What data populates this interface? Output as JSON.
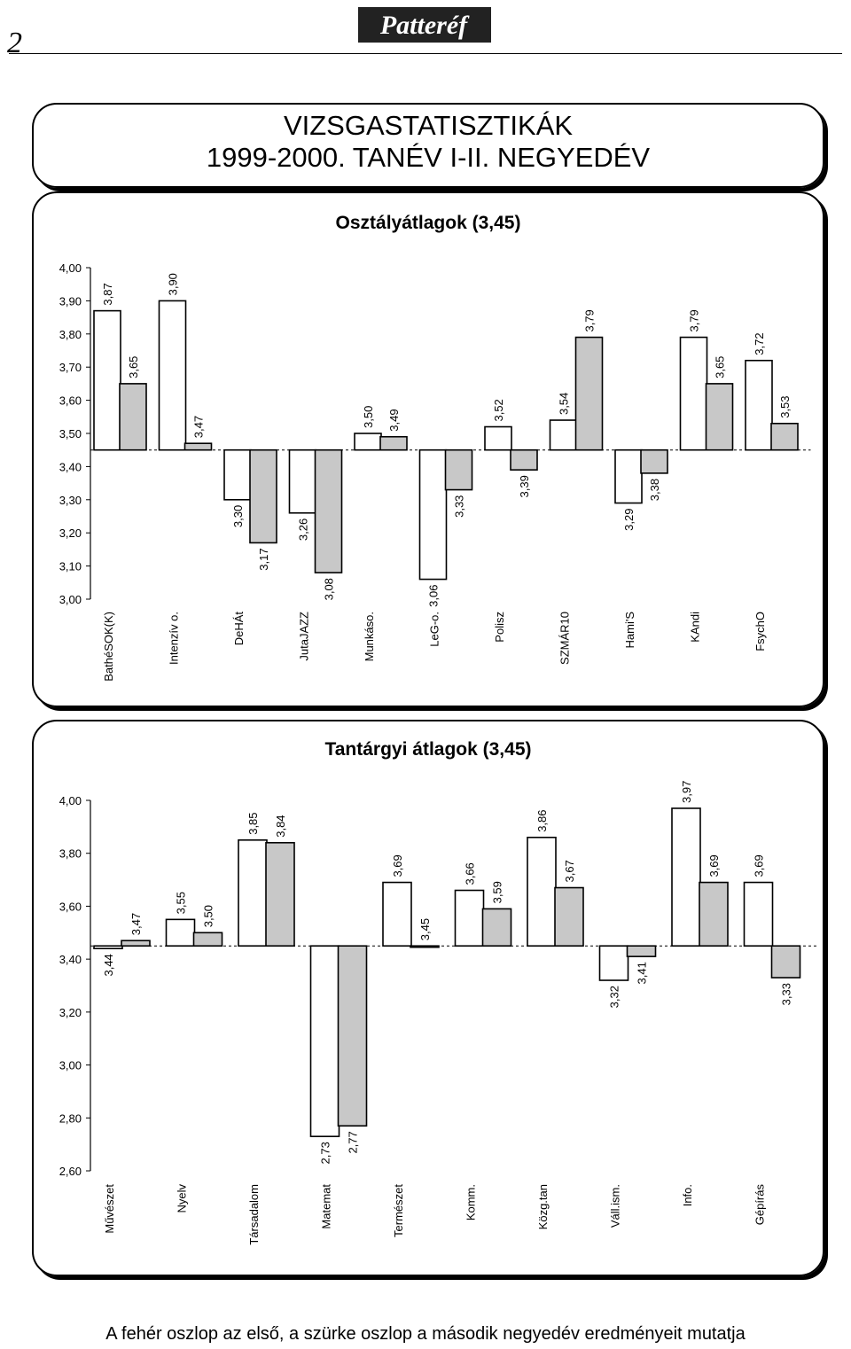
{
  "page": {
    "page_number": "2",
    "logo_text": "Patteréf",
    "title_line1": "VIZSGASTATISZTIKÁK",
    "title_line2": "1999-2000. TANÉV I-II. NEGYEDÉV",
    "footnote": "A fehér oszlop az első, a szürke oszlop a második negyedév eredményeit mutatja"
  },
  "chart_data": [
    {
      "type": "bar",
      "title": "Osztályátlagok (3,45)",
      "baseline": 3.45,
      "ylim": [
        3.0,
        4.0
      ],
      "yticks": [
        "4,00",
        "3,90",
        "3,80",
        "3,70",
        "3,60",
        "3,50",
        "3,40",
        "3,30",
        "3,20",
        "3,10",
        "3,00"
      ],
      "categories": [
        "BathéSOK(K)",
        "Intenzív o.",
        "DeHÁt",
        "JutaJAZZ",
        "Munkáso.",
        "LeG-o.",
        "Polisz",
        "SZMÁR10",
        "Hami'S",
        "KAndi",
        "FsychO"
      ],
      "series": [
        {
          "values": [
            3.87,
            3.9,
            3.3,
            3.26,
            3.5,
            3.06,
            3.52,
            3.54,
            3.29,
            3.79,
            3.72
          ],
          "labels": [
            "3,87",
            "3,90",
            "3,30",
            "3,26",
            "3,50",
            "3,06",
            "3,52",
            "3,54",
            "3,29",
            "3,79",
            "3,72"
          ]
        },
        {
          "values": [
            3.65,
            3.47,
            3.17,
            3.08,
            3.49,
            3.33,
            3.39,
            3.79,
            3.38,
            3.65,
            3.53
          ],
          "labels": [
            "3,65",
            "3,47",
            "3,17",
            "3,08",
            "3,49",
            "3,33",
            "3,39",
            "3,79",
            "3,38",
            "3,65",
            "3,53"
          ]
        }
      ]
    },
    {
      "type": "bar",
      "title": "Tantárgyi átlagok (3,45)",
      "baseline": 3.45,
      "ylim": [
        2.6,
        4.0
      ],
      "yticks": [
        "4,00",
        "3,80",
        "3,60",
        "3,40",
        "3,20",
        "3,00",
        "2,80",
        "2,60"
      ],
      "categories": [
        "Művészet",
        "Nyelv",
        "Társadalom",
        "Matemat",
        "Természet",
        "Komm.",
        "Közg.tan",
        "Váll.ism.",
        "Info.",
        "Gépírás"
      ],
      "series": [
        {
          "values": [
            3.44,
            3.55,
            3.85,
            2.73,
            3.69,
            3.66,
            3.86,
            3.32,
            3.97,
            3.69
          ],
          "labels": [
            "3,44",
            "3,55",
            "3,85",
            "2,73",
            "3,69",
            "3,66",
            "3,86",
            "3,32",
            "3,97",
            "3,69"
          ]
        },
        {
          "values": [
            3.47,
            3.5,
            3.84,
            2.77,
            3.45,
            3.59,
            3.67,
            3.41,
            3.69,
            3.33
          ],
          "labels": [
            "3,47",
            "3,50",
            "3,84",
            "2,77",
            "3,45",
            "3,59",
            "3,67",
            "3,41",
            "3,69",
            "3,33"
          ]
        }
      ]
    }
  ],
  "colors": {
    "series1": "#ffffff",
    "series2": "#c8c8c8",
    "stroke": "#000000"
  }
}
